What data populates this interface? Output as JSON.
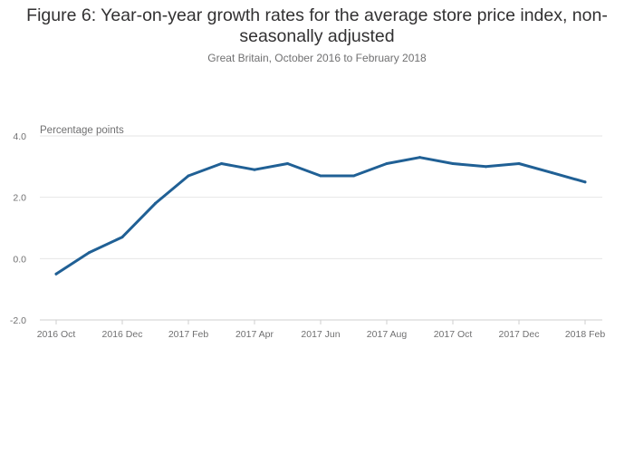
{
  "title": "Figure 6: Year-on-year growth rates for the average store price index, non-seasonally adjusted",
  "subtitle": "Great Britain, October 2016 to February 2018",
  "chart_data": {
    "type": "line",
    "title": "Figure 6: Year-on-year growth rates for the average store price index, non-seasonally adjusted",
    "subtitle": "Great Britain, October 2016 to February 2018",
    "ylabel": "Percentage points",
    "xlabel": "",
    "ylim": [
      -2.0,
      4.0
    ],
    "yticks": [
      "-2.0",
      "0.0",
      "2.0",
      "4.0"
    ],
    "xticks": [
      "2016 Oct",
      "2016 Dec",
      "2017 Feb",
      "2017 Apr",
      "2017 Jun",
      "2017 Aug",
      "2017 Oct",
      "2017 Dec",
      "2018 Feb"
    ],
    "grid": true,
    "line_color": "#206095",
    "categories": [
      "2016 Oct",
      "2016 Nov",
      "2016 Dec",
      "2017 Jan",
      "2017 Feb",
      "2017 Mar",
      "2017 Apr",
      "2017 May",
      "2017 Jun",
      "2017 Jul",
      "2017 Aug",
      "2017 Sep",
      "2017 Oct",
      "2017 Nov",
      "2017 Dec",
      "2018 Jan",
      "2018 Feb"
    ],
    "series": [
      {
        "values": [
          -0.5,
          0.2,
          0.7,
          1.8,
          2.7,
          3.1,
          2.9,
          3.1,
          2.7,
          2.7,
          3.1,
          3.3,
          3.1,
          3.0,
          3.1,
          2.8,
          2.5
        ]
      }
    ]
  }
}
